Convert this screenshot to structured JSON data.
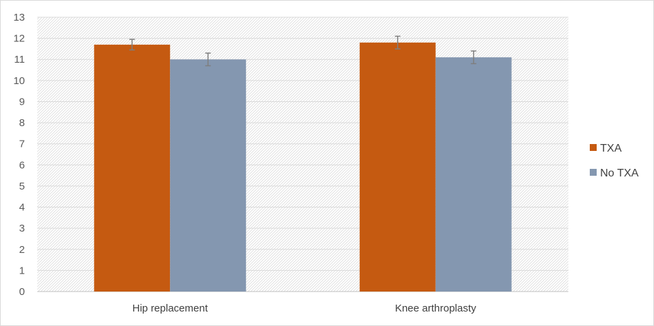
{
  "chart_data": {
    "type": "bar",
    "categories": [
      "Hip replacement",
      "Knee arthroplasty"
    ],
    "series": [
      {
        "name": "TXA",
        "values": [
          11.7,
          11.8
        ],
        "errors": [
          0.25,
          0.3
        ],
        "color": "#c55a11"
      },
      {
        "name": "No TXA",
        "values": [
          11.0,
          11.1
        ],
        "errors": [
          0.3,
          0.3
        ],
        "color": "#8497b0"
      }
    ],
    "ylim": [
      0,
      13
    ],
    "yticks": [
      "0",
      "1",
      "2",
      "3",
      "4",
      "5",
      "6",
      "7",
      "8",
      "9",
      "10",
      "11",
      "12",
      "13"
    ],
    "grid": true,
    "legend_position": "right",
    "plot_background": "hatched",
    "error_bar_color": "#7f7f7f",
    "gridline_color": "#d9d9d9",
    "axis_color": "#bfbfbf"
  }
}
